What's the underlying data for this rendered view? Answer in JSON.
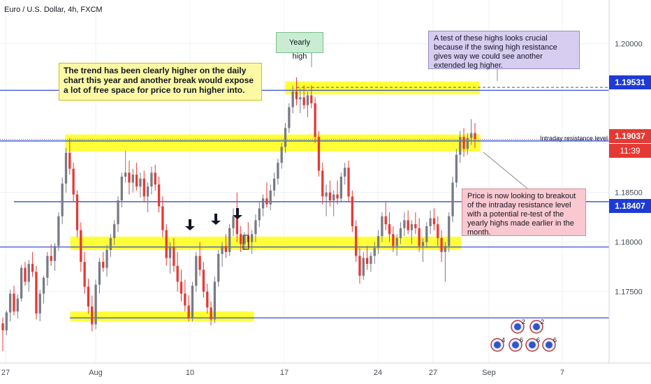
{
  "title": "Euro / U.S. Dollar, 4h, FXCM",
  "colors": {
    "up": "#787b86",
    "down": "#e53935",
    "line": "#1e3ad6",
    "highlight": "#ffff00",
    "axis_bg": "#ffffff",
    "price_red": "#e53935"
  },
  "chart_data": {
    "type": "candlestick",
    "title": "Euro / U.S. Dollar, 4h, FXCM",
    "ylim": [
      1.1685,
      1.2035
    ],
    "y_ticks": [
      "1.20000",
      "1.18500",
      "1.18000",
      "1.17500"
    ],
    "x_ticks": [
      "27",
      "Aug",
      "10",
      "17",
      "24",
      "27",
      "Sep",
      "7"
    ],
    "levels": [
      {
        "price": 1.19531,
        "label": "1.19531",
        "color": "#1e3ad6"
      },
      {
        "price": 1.18407,
        "label": "1.18407",
        "color": "#1e3ad6"
      },
      {
        "price": 1.1795,
        "color": "#1e3ad6"
      },
      {
        "price": 1.1902,
        "color": "#1e3ad6"
      },
      {
        "price": 1.17235,
        "color": "#1e3ad6"
      }
    ],
    "current_price": {
      "value": 1.19037,
      "label": "1.19037",
      "countdown": "11:39"
    },
    "resistance_label": "Intraday resistance level",
    "zones": [
      {
        "y": [
          1.18915,
          1.19085
        ],
        "x": [
          0.1,
          0.738
        ]
      },
      {
        "y": [
          1.1792,
          1.18055
        ],
        "x": [
          0.108,
          0.708
        ]
      },
      {
        "y": [
          1.172,
          1.173
        ],
        "x": [
          0.108,
          0.39
        ]
      },
      {
        "y": [
          1.1949,
          1.1962
        ],
        "x": [
          0.438,
          0.737
        ]
      }
    ],
    "candles": [
      [
        1.1718,
        1.1724,
        1.169,
        1.1711
      ],
      [
        1.1711,
        1.1731,
        1.1706,
        1.1729
      ],
      [
        1.1729,
        1.1752,
        1.172,
        1.1748
      ],
      [
        1.1748,
        1.1756,
        1.1726,
        1.173
      ],
      [
        1.173,
        1.1747,
        1.1723,
        1.1743
      ],
      [
        1.1743,
        1.1777,
        1.174,
        1.1774
      ],
      [
        1.1774,
        1.178,
        1.1756,
        1.176
      ],
      [
        1.176,
        1.1782,
        1.175,
        1.1778
      ],
      [
        1.1778,
        1.179,
        1.1765,
        1.177
      ],
      [
        1.177,
        1.1776,
        1.1722,
        1.1728
      ],
      [
        1.1728,
        1.1752,
        1.172,
        1.1748
      ],
      [
        1.1748,
        1.1766,
        1.1738,
        1.1764
      ],
      [
        1.1764,
        1.179,
        1.1756,
        1.1786
      ],
      [
        1.1786,
        1.1798,
        1.1776,
        1.1781
      ],
      [
        1.1781,
        1.1799,
        1.1771,
        1.1796
      ],
      [
        1.1796,
        1.183,
        1.1791,
        1.1826
      ],
      [
        1.1826,
        1.1865,
        1.1818,
        1.1859
      ],
      [
        1.1859,
        1.1895,
        1.185,
        1.189
      ],
      [
        1.189,
        1.1905,
        1.1868,
        1.1874
      ],
      [
        1.1874,
        1.188,
        1.184,
        1.1848
      ],
      [
        1.1848,
        1.1852,
        1.1805,
        1.1812
      ],
      [
        1.1812,
        1.182,
        1.177,
        1.178
      ],
      [
        1.178,
        1.179,
        1.1748,
        1.1755
      ],
      [
        1.1755,
        1.1763,
        1.1728,
        1.1735
      ],
      [
        1.1735,
        1.1746,
        1.171,
        1.1717
      ],
      [
        1.1717,
        1.1762,
        1.1712,
        1.1757
      ],
      [
        1.1757,
        1.1784,
        1.1748,
        1.178
      ],
      [
        1.178,
        1.179,
        1.177,
        1.1774
      ],
      [
        1.1774,
        1.1797,
        1.1765,
        1.1792
      ],
      [
        1.1792,
        1.1808,
        1.1785,
        1.1804
      ],
      [
        1.1804,
        1.1822,
        1.1797,
        1.1818
      ],
      [
        1.1818,
        1.1846,
        1.181,
        1.1842
      ],
      [
        1.1842,
        1.187,
        1.1835,
        1.1866
      ],
      [
        1.1866,
        1.1892,
        1.186,
        1.187
      ],
      [
        1.187,
        1.1882,
        1.1848,
        1.186
      ],
      [
        1.186,
        1.1874,
        1.185,
        1.1868
      ],
      [
        1.1868,
        1.188,
        1.1852,
        1.1856
      ],
      [
        1.1856,
        1.187,
        1.1845,
        1.1864
      ],
      [
        1.1864,
        1.1872,
        1.184,
        1.1846
      ],
      [
        1.1846,
        1.186,
        1.183,
        1.1856
      ],
      [
        1.1856,
        1.1876,
        1.1848,
        1.187
      ],
      [
        1.187,
        1.1878,
        1.1852,
        1.1858
      ],
      [
        1.1858,
        1.1866,
        1.183,
        1.1836
      ],
      [
        1.1836,
        1.1846,
        1.1805,
        1.1812
      ],
      [
        1.1812,
        1.1818,
        1.1776,
        1.1784
      ],
      [
        1.1784,
        1.18,
        1.1768,
        1.1795
      ],
      [
        1.1795,
        1.1804,
        1.177,
        1.1776
      ],
      [
        1.1776,
        1.179,
        1.175,
        1.176
      ],
      [
        1.176,
        1.1772,
        1.174,
        1.1748
      ],
      [
        1.1748,
        1.1762,
        1.173,
        1.1736
      ],
      [
        1.1736,
        1.1746,
        1.172,
        1.1724
      ],
      [
        1.1724,
        1.176,
        1.172,
        1.1756
      ],
      [
        1.1756,
        1.179,
        1.175,
        1.1786
      ],
      [
        1.1786,
        1.18,
        1.1766,
        1.1772
      ],
      [
        1.1772,
        1.178,
        1.1744,
        1.175
      ],
      [
        1.175,
        1.1758,
        1.1728,
        1.1734
      ],
      [
        1.1734,
        1.174,
        1.1716,
        1.1722
      ],
      [
        1.1722,
        1.1765,
        1.1718,
        1.176
      ],
      [
        1.176,
        1.1792,
        1.1755,
        1.1788
      ],
      [
        1.1788,
        1.18,
        1.1775,
        1.1796
      ],
      [
        1.1796,
        1.1808,
        1.1784,
        1.179
      ],
      [
        1.179,
        1.1818,
        1.1786,
        1.1814
      ],
      [
        1.1814,
        1.1834,
        1.1806,
        1.1826
      ],
      [
        1.1826,
        1.185,
        1.18,
        1.1808
      ],
      [
        1.1808,
        1.1816,
        1.179,
        1.1798
      ],
      [
        1.1798,
        1.181,
        1.1792,
        1.1806
      ],
      [
        1.1806,
        1.182,
        1.1795,
        1.18
      ],
      [
        1.18,
        1.1812,
        1.1788,
        1.1808
      ],
      [
        1.1808,
        1.1828,
        1.18,
        1.1822
      ],
      [
        1.1822,
        1.184,
        1.1815,
        1.1834
      ],
      [
        1.1834,
        1.1848,
        1.1826,
        1.1844
      ],
      [
        1.1844,
        1.186,
        1.1835,
        1.1838
      ],
      [
        1.1838,
        1.1858,
        1.1832,
        1.1852
      ],
      [
        1.1852,
        1.187,
        1.1846,
        1.1864
      ],
      [
        1.1864,
        1.1884,
        1.1858,
        1.188
      ],
      [
        1.188,
        1.19,
        1.1874,
        1.1896
      ],
      [
        1.1896,
        1.192,
        1.189,
        1.1915
      ],
      [
        1.1915,
        1.194,
        1.191,
        1.1936
      ],
      [
        1.1936,
        1.1958,
        1.193,
        1.1952
      ],
      [
        1.1952,
        1.1966,
        1.1938,
        1.1944
      ],
      [
        1.1944,
        1.1955,
        1.193,
        1.1946
      ],
      [
        1.1946,
        1.1958,
        1.1934,
        1.1938
      ],
      [
        1.1938,
        1.1952,
        1.1926,
        1.1948
      ],
      [
        1.1948,
        1.1958,
        1.1935,
        1.194
      ],
      [
        1.194,
        1.1946,
        1.19,
        1.1906
      ],
      [
        1.1906,
        1.1912,
        1.1866,
        1.1872
      ],
      [
        1.1872,
        1.188,
        1.1838,
        1.1846
      ],
      [
        1.1846,
        1.1858,
        1.1826,
        1.185
      ],
      [
        1.185,
        1.1862,
        1.1836,
        1.1842
      ],
      [
        1.1842,
        1.1852,
        1.1826,
        1.1848
      ],
      [
        1.1848,
        1.1862,
        1.1838,
        1.1844
      ],
      [
        1.1844,
        1.187,
        1.184,
        1.1866
      ],
      [
        1.1866,
        1.188,
        1.1858,
        1.1875
      ],
      [
        1.1875,
        1.1882,
        1.184,
        1.1846
      ],
      [
        1.1846,
        1.1852,
        1.181,
        1.1816
      ],
      [
        1.1816,
        1.1822,
        1.178,
        1.1786
      ],
      [
        1.1786,
        1.1794,
        1.1758,
        1.1766
      ],
      [
        1.1766,
        1.179,
        1.1762,
        1.1784
      ],
      [
        1.1784,
        1.1796,
        1.1772,
        1.1778
      ],
      [
        1.1778,
        1.179,
        1.177,
        1.1786
      ],
      [
        1.1786,
        1.18,
        1.1778,
        1.1794
      ],
      [
        1.1794,
        1.1812,
        1.1788,
        1.1806
      ],
      [
        1.1806,
        1.183,
        1.18,
        1.1826
      ],
      [
        1.1826,
        1.184,
        1.1812,
        1.1818
      ],
      [
        1.1818,
        1.183,
        1.18,
        1.1808
      ],
      [
        1.1808,
        1.1816,
        1.179,
        1.1796
      ],
      [
        1.1796,
        1.1808,
        1.1786,
        1.1804
      ],
      [
        1.1804,
        1.182,
        1.1798,
        1.1814
      ],
      [
        1.1814,
        1.183,
        1.1806,
        1.1822
      ],
      [
        1.1822,
        1.1832,
        1.1808,
        1.1812
      ],
      [
        1.1812,
        1.1822,
        1.1798,
        1.1818
      ],
      [
        1.1818,
        1.183,
        1.1808,
        1.1814
      ],
      [
        1.1814,
        1.1824,
        1.179,
        1.1796
      ],
      [
        1.1796,
        1.1804,
        1.178,
        1.18
      ],
      [
        1.18,
        1.182,
        1.1794,
        1.1816
      ],
      [
        1.1816,
        1.1832,
        1.1808,
        1.1824
      ],
      [
        1.1824,
        1.1834,
        1.1812,
        1.1818
      ],
      [
        1.1818,
        1.1826,
        1.1796,
        1.1804
      ],
      [
        1.1804,
        1.1812,
        1.178,
        1.179
      ],
      [
        1.179,
        1.18,
        1.176,
        1.1796
      ],
      [
        1.1796,
        1.183,
        1.179,
        1.1826
      ],
      [
        1.1826,
        1.1866,
        1.182,
        1.186
      ],
      [
        1.186,
        1.1894,
        1.1855,
        1.1888
      ],
      [
        1.1888,
        1.1912,
        1.188,
        1.1906
      ],
      [
        1.1906,
        1.1915,
        1.1886,
        1.1894
      ],
      [
        1.1894,
        1.191,
        1.1888,
        1.1905
      ],
      [
        1.1905,
        1.1924,
        1.1898,
        1.191
      ],
      [
        1.191,
        1.192,
        1.1895,
        1.1904
      ]
    ]
  },
  "notes": {
    "trend": "The trend has been clearly higher on the daily chart this year and another break would expose a lot of free space for price to run higher into.",
    "highs": "A test of these highs looks crucial because if the swing high resistance gives way we could see another extended leg higher.",
    "yearly": "Yearly high",
    "breakout": "Price is now looking to breakout of the intraday resistance level with a potential re-test of the yearly highs made earlier in the month."
  },
  "price_labels": {
    "p1": "1.19531",
    "p2": "1.19037",
    "countdown": "11:39",
    "p3": "1.18407"
  },
  "event_badges": [
    "2",
    "2",
    "4",
    "6",
    "6",
    "6"
  ]
}
